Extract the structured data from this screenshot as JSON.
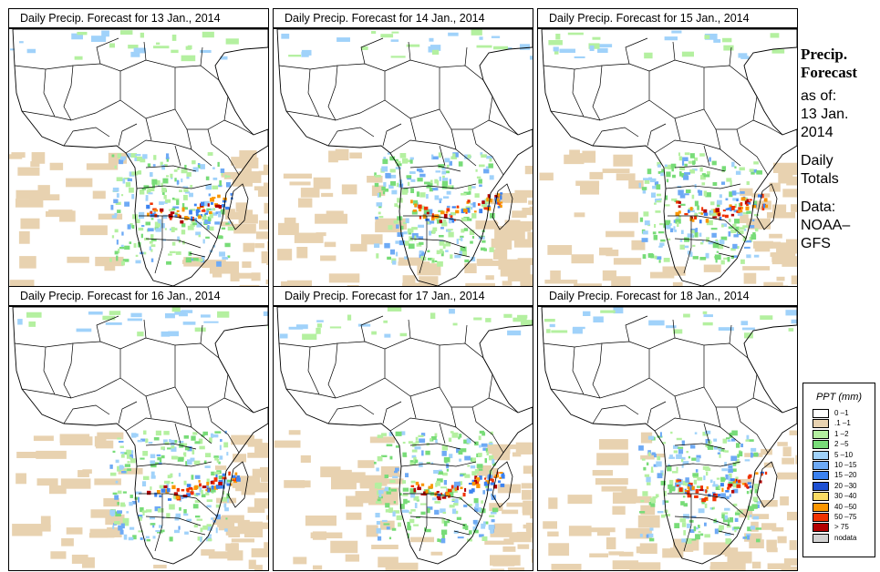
{
  "panels": [
    {
      "title": "Daily Precip. Forecast for  13 Jan., 2014",
      "seed": 13
    },
    {
      "title": "Daily Precip. Forecast for  14 Jan., 2014",
      "seed": 14
    },
    {
      "title": "Daily Precip. Forecast for  15 Jan., 2014",
      "seed": 15
    },
    {
      "title": "Daily Precip. Forecast for  16 Jan., 2014",
      "seed": 16
    },
    {
      "title": "Daily Precip. Forecast for  17 Jan., 2014",
      "seed": 17
    },
    {
      "title": "Daily Precip. Forecast for  18 Jan., 2014",
      "seed": 18
    }
  ],
  "sidebar": {
    "heading_1": "Precip.",
    "heading_2": "Forecast",
    "asof_1": "as of:",
    "asof_2": "13 Jan.",
    "asof_3": "2014",
    "daily_1": "Daily",
    "daily_2": "Totals",
    "data_1": "Data:",
    "data_2": "NOAA–",
    "data_3": "GFS"
  },
  "legend": {
    "title": "PPT (mm)",
    "items": [
      {
        "label": "0 –1",
        "color": "#ffffff"
      },
      {
        "label": ".1 –1",
        "color": "#e8d2b0"
      },
      {
        "label": "1 –2",
        "color": "#b4f0a0"
      },
      {
        "label": "2 –5",
        "color": "#78dc78"
      },
      {
        "label": "5 –10",
        "color": "#a0d2fa"
      },
      {
        "label": "10 –15",
        "color": "#6eaaf5"
      },
      {
        "label": "15 –20",
        "color": "#3c82f0"
      },
      {
        "label": "20 –30",
        "color": "#1e50d2"
      },
      {
        "label": "30 –40",
        "color": "#fadc64"
      },
      {
        "label": "40 –50",
        "color": "#fa9600"
      },
      {
        "label": "50 –75",
        "color": "#f03200"
      },
      {
        "label": "> 75",
        "color": "#b40000"
      },
      {
        "label": "nodata",
        "color": "#d2d2d2"
      }
    ]
  }
}
